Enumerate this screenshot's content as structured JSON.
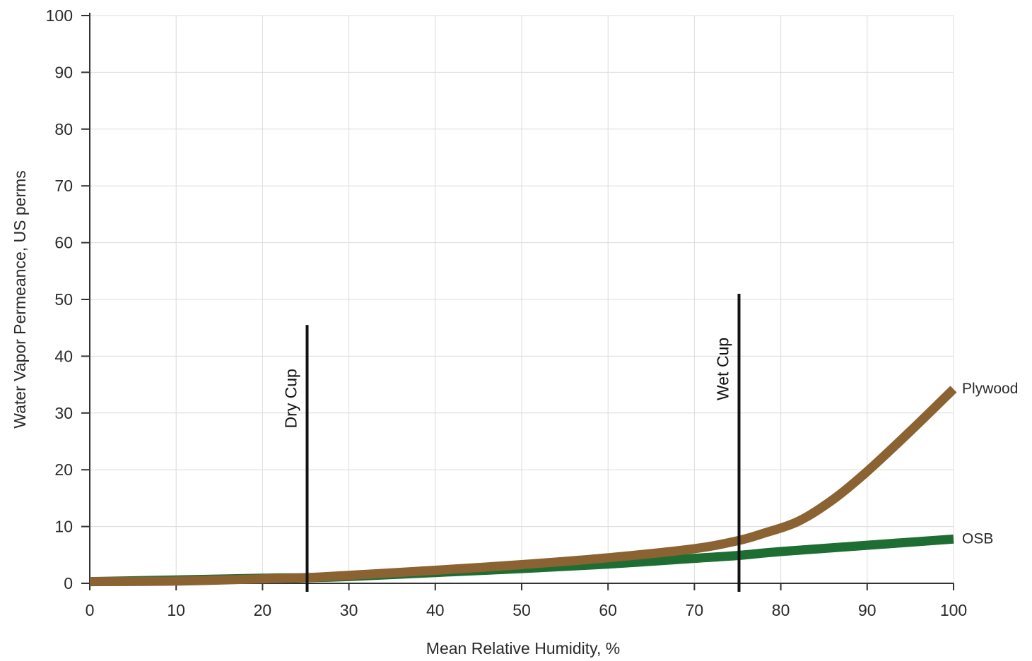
{
  "chart_data": {
    "type": "line",
    "title": "",
    "xlabel": "Mean Relative Humidity, %",
    "ylabel": "Water Vapor Permeance, US perms",
    "xlim": [
      0,
      100
    ],
    "ylim": [
      0,
      100
    ],
    "x_ticks": [
      0,
      10,
      20,
      30,
      40,
      50,
      60,
      70,
      80,
      90,
      100
    ],
    "y_ticks": [
      0,
      10,
      20,
      30,
      40,
      50,
      60,
      70,
      80,
      90,
      100
    ],
    "grid": true,
    "series": [
      {
        "name": "OSB",
        "color": "#1e6e34",
        "x": [
          0,
          10,
          20,
          25,
          30,
          40,
          50,
          60,
          70,
          75,
          80,
          90,
          100
        ],
        "y": [
          0.3,
          0.6,
          0.9,
          1.0,
          1.2,
          1.9,
          2.6,
          3.4,
          4.4,
          4.9,
          5.6,
          6.7,
          7.8
        ]
      },
      {
        "name": "Plywood",
        "color": "#8b6231",
        "x": [
          0,
          10,
          20,
          25,
          30,
          40,
          50,
          60,
          70,
          75,
          78,
          82,
          86,
          90,
          95,
          100
        ],
        "y": [
          0.3,
          0.4,
          0.8,
          1.0,
          1.4,
          2.3,
          3.3,
          4.5,
          6.1,
          7.5,
          8.8,
          10.9,
          14.7,
          19.7,
          26.8,
          34.2
        ]
      }
    ],
    "markers": [
      {
        "label": "Dry Cup",
        "x": 25,
        "y_top": 45.5
      },
      {
        "label": "Wet Cup",
        "x": 75,
        "y_top": 51
      }
    ]
  }
}
